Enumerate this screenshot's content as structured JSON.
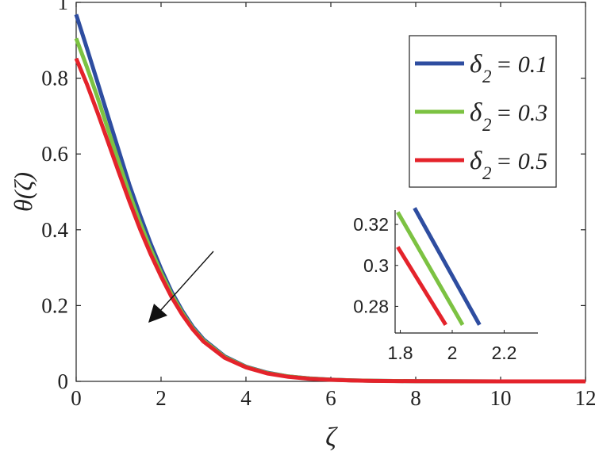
{
  "chart_data": [
    {
      "type": "line",
      "xlabel": "ζ",
      "ylabel": "θ(ζ)",
      "xlim": [
        0,
        12
      ],
      "ylim": [
        0,
        1
      ],
      "x_ticks": [
        "0",
        "2",
        "4",
        "6",
        "8",
        "10",
        "12"
      ],
      "y_ticks": [
        "0",
        "0.2",
        "0.4",
        "0.6",
        "0.8",
        "1"
      ],
      "grid": false,
      "legend_position": "top-right",
      "arrow_annotation": "decreasing with increasing δ2",
      "series": [
        {
          "name": "δ2 = 0.1",
          "color": "#2e4da0",
          "x": [
            0,
            0.25,
            0.5,
            0.75,
            1,
            1.25,
            1.5,
            1.75,
            2,
            2.25,
            2.5,
            2.75,
            3,
            3.5,
            4,
            4.5,
            5,
            5.5,
            6,
            6.5,
            7,
            8,
            9,
            10,
            11,
            12
          ],
          "y": [
            0.968,
            0.88,
            0.79,
            0.7,
            0.61,
            0.52,
            0.44,
            0.365,
            0.297,
            0.236,
            0.186,
            0.144,
            0.111,
            0.066,
            0.039,
            0.023,
            0.013,
            0.008,
            0.0045,
            0.0026,
            0.0015,
            0.0005,
            0.0002,
            0.0001,
            0.0,
            0.0
          ]
        },
        {
          "name": "δ2 = 0.3",
          "color": "#7cc242",
          "x": [
            0,
            0.25,
            0.5,
            0.75,
            1,
            1.25,
            1.5,
            1.75,
            2,
            2.25,
            2.5,
            2.75,
            3,
            3.5,
            4,
            4.5,
            5,
            5.5,
            6,
            6.5,
            7,
            8,
            9,
            10,
            11,
            12
          ],
          "y": [
            0.905,
            0.83,
            0.75,
            0.665,
            0.58,
            0.497,
            0.42,
            0.35,
            0.287,
            0.229,
            0.181,
            0.14,
            0.108,
            0.064,
            0.038,
            0.022,
            0.013,
            0.0075,
            0.0043,
            0.0025,
            0.0014,
            0.0005,
            0.0002,
            0.0001,
            0.0,
            0.0
          ]
        },
        {
          "name": "δ2 = 0.5",
          "color": "#e4232b",
          "x": [
            0,
            0.25,
            0.5,
            0.75,
            1,
            1.25,
            1.5,
            1.75,
            2,
            2.25,
            2.5,
            2.75,
            3,
            3.5,
            4,
            4.5,
            5,
            5.5,
            6,
            6.5,
            7,
            8,
            9,
            10,
            11,
            12
          ],
          "y": [
            0.852,
            0.785,
            0.71,
            0.632,
            0.553,
            0.476,
            0.403,
            0.337,
            0.277,
            0.222,
            0.176,
            0.137,
            0.105,
            0.062,
            0.037,
            0.021,
            0.012,
            0.007,
            0.0041,
            0.0024,
            0.0013,
            0.0005,
            0.0002,
            0.0001,
            0.0,
            0.0
          ]
        }
      ]
    },
    {
      "type": "line",
      "inset": true,
      "xlim": [
        1.78,
        2.33
      ],
      "ylim": [
        0.267,
        0.327
      ],
      "x_ticks": [
        "1.8",
        "2",
        "2.2"
      ],
      "y_ticks": [
        "0.28",
        "0.3",
        "0.32"
      ],
      "series": [
        {
          "name": "δ2 = 0.1",
          "color": "#2e4da0",
          "x": [
            1.855,
            2.105
          ],
          "y": [
            0.328,
            0.271
          ]
        },
        {
          "name": "δ2 = 0.3",
          "color": "#7cc242",
          "x": [
            1.79,
            2.04
          ],
          "y": [
            0.326,
            0.271
          ]
        },
        {
          "name": "δ2 = 0.5",
          "color": "#e4232b",
          "x": [
            1.79,
            1.975
          ],
          "y": [
            0.309,
            0.271
          ]
        }
      ]
    }
  ],
  "legend": {
    "entries": [
      {
        "symbol": "δ",
        "subscript": "2",
        "value": "= 0.1",
        "color": "#2e4da0"
      },
      {
        "symbol": "δ",
        "subscript": "2",
        "value": "= 0.3",
        "color": "#7cc242"
      },
      {
        "symbol": "δ",
        "subscript": "2",
        "value": "= 0.5",
        "color": "#e4232b"
      }
    ]
  }
}
